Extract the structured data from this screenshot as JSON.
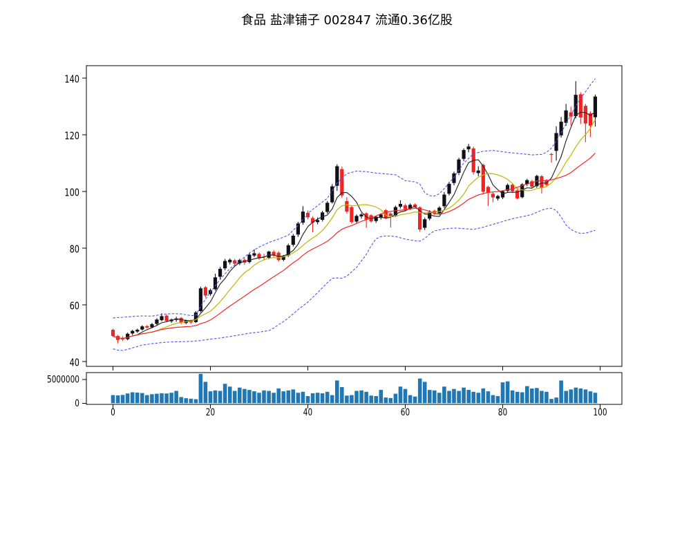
{
  "chart_data": {
    "type": "candlestick",
    "title": "食品 盐津铺子 002847 流通0.36亿股",
    "panels": [
      "price",
      "volume"
    ],
    "x_ticks": [
      0,
      20,
      40,
      60,
      80,
      100
    ],
    "price_ticks": [
      40,
      60,
      80,
      100,
      120,
      140
    ],
    "volume_ticks": [
      0,
      5000000
    ],
    "candles_ohlc": [
      [
        51.2,
        51.6,
        48.6,
        49.0
      ],
      [
        49.0,
        49.4,
        46.4,
        47.6
      ],
      [
        48.4,
        48.9,
        47.2,
        47.8
      ],
      [
        47.9,
        50.2,
        47.5,
        49.8
      ],
      [
        49.9,
        51.2,
        49.3,
        50.8
      ],
      [
        50.6,
        51.6,
        50.1,
        51.2
      ],
      [
        51.3,
        52.8,
        50.9,
        52.4
      ],
      [
        52.5,
        52.9,
        51.6,
        52.0
      ],
      [
        52.1,
        53.6,
        51.7,
        53.2
      ],
      [
        53.3,
        55.3,
        52.9,
        54.8
      ],
      [
        54.6,
        57.0,
        54.2,
        56.0
      ],
      [
        56.2,
        56.6,
        53.9,
        54.3
      ],
      [
        54.2,
        55.2,
        53.6,
        54.8
      ],
      [
        54.7,
        55.8,
        54.0,
        55.2
      ],
      [
        55.4,
        55.7,
        53.2,
        53.7
      ],
      [
        53.6,
        54.8,
        53.2,
        54.4
      ],
      [
        54.5,
        54.8,
        53.3,
        53.8
      ],
      [
        53.9,
        57.8,
        53.6,
        57.3
      ],
      [
        57.8,
        66.4,
        57.4,
        65.8
      ],
      [
        66.2,
        66.6,
        62.6,
        63.3
      ],
      [
        63.8,
        65.7,
        63.2,
        65.2
      ],
      [
        65.5,
        71.0,
        65.0,
        69.7
      ],
      [
        69.9,
        73.4,
        68.9,
        72.7
      ],
      [
        72.9,
        76.2,
        72.2,
        75.5
      ],
      [
        75.0,
        76.4,
        74.2,
        75.9
      ],
      [
        75.7,
        76.2,
        73.8,
        74.5
      ],
      [
        74.6,
        76.3,
        74.0,
        75.8
      ],
      [
        75.9,
        76.5,
        74.2,
        74.9
      ],
      [
        75.1,
        78.2,
        74.6,
        77.7
      ],
      [
        77.4,
        79.6,
        76.8,
        78.2
      ],
      [
        78.0,
        78.5,
        75.9,
        76.4
      ],
      [
        77.1,
        78.0,
        75.8,
        76.8
      ],
      [
        76.6,
        79.1,
        76.1,
        78.8
      ],
      [
        78.7,
        79.3,
        76.9,
        77.5
      ],
      [
        78.4,
        78.9,
        75.2,
        75.8
      ],
      [
        75.9,
        77.6,
        75.4,
        77.2
      ],
      [
        77.4,
        81.6,
        76.9,
        81.0
      ],
      [
        81.2,
        85.0,
        80.6,
        84.4
      ],
      [
        84.8,
        89.3,
        84.0,
        88.7
      ],
      [
        89.0,
        94.8,
        88.3,
        92.9
      ],
      [
        92.5,
        93.3,
        90.2,
        90.9
      ],
      [
        90.6,
        91.2,
        85.6,
        89.0
      ],
      [
        89.2,
        90.8,
        88.4,
        89.9
      ],
      [
        90.0,
        93.2,
        89.4,
        92.6
      ],
      [
        92.8,
        96.6,
        92.2,
        96.0
      ],
      [
        96.2,
        102.6,
        95.7,
        101.8
      ],
      [
        102.0,
        109.6,
        100.2,
        108.9
      ],
      [
        107.9,
        108.8,
        97.8,
        98.6
      ],
      [
        96.6,
        98.0,
        92.2,
        92.9
      ],
      [
        94.5,
        94.9,
        88.6,
        89.2
      ],
      [
        89.4,
        91.9,
        88.8,
        91.4
      ],
      [
        91.2,
        92.4,
        90.4,
        91.9
      ],
      [
        92.3,
        92.7,
        87.2,
        90.1
      ],
      [
        91.6,
        92.0,
        89.0,
        89.4
      ],
      [
        89.6,
        91.4,
        88.9,
        91.1
      ],
      [
        90.7,
        92.3,
        90.1,
        91.9
      ],
      [
        93.4,
        93.8,
        90.3,
        90.6
      ],
      [
        92.2,
        92.6,
        87.3,
        91.4
      ],
      [
        91.6,
        95.0,
        91.0,
        94.5
      ],
      [
        94.6,
        96.9,
        94.0,
        95.6
      ],
      [
        95.1,
        95.6,
        93.2,
        93.7
      ],
      [
        94.0,
        95.8,
        93.5,
        95.3
      ],
      [
        95.4,
        95.8,
        94.2,
        94.6
      ],
      [
        94.4,
        94.8,
        85.8,
        86.6
      ],
      [
        87.2,
        90.8,
        86.4,
        90.2
      ],
      [
        90.4,
        93.4,
        89.8,
        92.8
      ],
      [
        93.2,
        93.6,
        91.6,
        92.1
      ],
      [
        92.3,
        94.8,
        91.8,
        94.3
      ],
      [
        94.8,
        99.8,
        94.2,
        98.9
      ],
      [
        99.2,
        103.4,
        98.6,
        102.7
      ],
      [
        103.0,
        107.0,
        102.2,
        106.4
      ],
      [
        106.6,
        111.9,
        105.8,
        111.3
      ],
      [
        111.5,
        115.2,
        110.7,
        114.6
      ],
      [
        114.9,
        116.8,
        113.8,
        115.9
      ],
      [
        115.2,
        115.8,
        106.0,
        106.8
      ],
      [
        106.5,
        108.9,
        105.4,
        107.4
      ],
      [
        109.4,
        109.8,
        99.0,
        99.9
      ],
      [
        101.6,
        102.0,
        94.9,
        99.6
      ],
      [
        99.2,
        99.8,
        96.2,
        97.9
      ],
      [
        97.5,
        98.8,
        96.8,
        98.4
      ],
      [
        97.9,
        100.4,
        97.3,
        100.1
      ],
      [
        100.2,
        102.8,
        99.6,
        102.3
      ],
      [
        102.4,
        102.9,
        99.5,
        100.1
      ],
      [
        100.4,
        100.9,
        97.2,
        97.6
      ],
      [
        98.0,
        102.9,
        97.6,
        102.5
      ],
      [
        102.6,
        104.5,
        101.9,
        104.0
      ],
      [
        103.6,
        104.1,
        101.2,
        101.7
      ],
      [
        101.9,
        105.9,
        101.3,
        105.5
      ],
      [
        105.4,
        105.8,
        99.3,
        101.2
      ],
      [
        104.0,
        104.4,
        101.6,
        102.3
      ],
      [
        113.2,
        113.6,
        110.2,
        112.9
      ],
      [
        114.3,
        123.0,
        110.9,
        120.6
      ],
      [
        119.8,
        126.3,
        119.0,
        124.6
      ],
      [
        124.2,
        130.9,
        123.2,
        128.6
      ],
      [
        127.9,
        129.9,
        123.3,
        126.4
      ],
      [
        126.6,
        138.9,
        125.8,
        134.1
      ],
      [
        134.3,
        135.0,
        123.8,
        126.1
      ],
      [
        130.2,
        130.9,
        117.4,
        124.0
      ],
      [
        127.6,
        128.3,
        119.2,
        123.2
      ],
      [
        126.2,
        134.2,
        122.9,
        133.5
      ]
    ],
    "volumes": [
      1700000,
      1650000,
      1750000,
      2050000,
      2300000,
      2250000,
      2150000,
      1700000,
      1900000,
      2000000,
      2100000,
      2050000,
      2200000,
      2600000,
      1300000,
      1050000,
      950000,
      850000,
      6200000,
      4500000,
      2500000,
      2700000,
      2600000,
      4100000,
      3500000,
      2600000,
      3300000,
      3000000,
      2800000,
      2500000,
      2200000,
      2700000,
      2600000,
      2200000,
      3100000,
      2500000,
      2700000,
      2900000,
      2200000,
      2400000,
      1500000,
      2100000,
      2200000,
      2100000,
      2400000,
      1700000,
      4800000,
      3400000,
      1600000,
      1700000,
      2600000,
      2700000,
      2400000,
      1600000,
      1500000,
      2800000,
      1200000,
      1100000,
      2000000,
      3500000,
      3000000,
      1700000,
      1400000,
      5200000,
      4500000,
      2800000,
      2700000,
      2200000,
      3500000,
      2600000,
      3000000,
      2600000,
      3300000,
      2800000,
      2400000,
      2200000,
      3100000,
      2500000,
      1700000,
      1500000,
      4400000,
      4600000,
      2700000,
      2400000,
      2300000,
      3600000,
      3100000,
      3200000,
      2600000,
      2400000,
      900000,
      1200000,
      4800000,
      2600000,
      2900000,
      3300000,
      3100000,
      2900000,
      2500000,
      2200000
    ],
    "overlays": {
      "ma_fast_window": 5,
      "ma_mid_window": 10,
      "ma_slow_window": 20,
      "bollinger_upper_anchors": [
        [
          0,
          55.4
        ],
        [
          2,
          55.6
        ],
        [
          4,
          55.9
        ],
        [
          6,
          56.1
        ],
        [
          8,
          56.0
        ],
        [
          10,
          56.6
        ],
        [
          12,
          56.9
        ],
        [
          14,
          56.8
        ],
        [
          16,
          56.2
        ],
        [
          17,
          56.3
        ],
        [
          18,
          59.5
        ],
        [
          20,
          64.5
        ],
        [
          22,
          69.0
        ],
        [
          24,
          72.8
        ],
        [
          26,
          75.4
        ],
        [
          28,
          78.3
        ],
        [
          30,
          80.4
        ],
        [
          32,
          82.0
        ],
        [
          34,
          83.2
        ],
        [
          36,
          84.6
        ],
        [
          38,
          88.0
        ],
        [
          40,
          92.3
        ],
        [
          42,
          95.0
        ],
        [
          44,
          97.6
        ],
        [
          46,
          103.0
        ],
        [
          48,
          106.3
        ],
        [
          50,
          107.2
        ],
        [
          52,
          107.0
        ],
        [
          54,
          106.5
        ],
        [
          56,
          106.2
        ],
        [
          58,
          105.9
        ],
        [
          60,
          103.8
        ],
        [
          62,
          103.4
        ],
        [
          63,
          102.6
        ],
        [
          64,
          99.6
        ],
        [
          65,
          98.5
        ],
        [
          66,
          98.4
        ],
        [
          67,
          99.2
        ],
        [
          68,
          101.0
        ],
        [
          70,
          105.0
        ],
        [
          72,
          110.0
        ],
        [
          74,
          113.3
        ],
        [
          76,
          114.2
        ],
        [
          78,
          114.5
        ],
        [
          80,
          114.0
        ],
        [
          82,
          113.6
        ],
        [
          84,
          113.3
        ],
        [
          86,
          112.9
        ],
        [
          88,
          113.1
        ],
        [
          89,
          113.8
        ],
        [
          90,
          115.3
        ],
        [
          91,
          117.8
        ],
        [
          92,
          120.8
        ],
        [
          93,
          123.8
        ],
        [
          94,
          127.0
        ],
        [
          95,
          130.2
        ],
        [
          96,
          132.8
        ],
        [
          97,
          135.2
        ],
        [
          98,
          137.6
        ],
        [
          99,
          139.8
        ]
      ],
      "bollinger_lower_anchors": [
        [
          0,
          44.5
        ],
        [
          1,
          44.0
        ],
        [
          2,
          43.9
        ],
        [
          3,
          44.3
        ],
        [
          4,
          44.8
        ],
        [
          5,
          45.3
        ],
        [
          6,
          45.8
        ],
        [
          8,
          46.3
        ],
        [
          10,
          46.7
        ],
        [
          12,
          46.9
        ],
        [
          14,
          47.0
        ],
        [
          16,
          47.1
        ],
        [
          18,
          47.4
        ],
        [
          20,
          47.9
        ],
        [
          22,
          48.3
        ],
        [
          24,
          48.8
        ],
        [
          26,
          49.4
        ],
        [
          28,
          50.0
        ],
        [
          30,
          50.4
        ],
        [
          32,
          50.9
        ],
        [
          33,
          51.8
        ],
        [
          34,
          53.0
        ],
        [
          35,
          54.1
        ],
        [
          36,
          55.4
        ],
        [
          37,
          56.8
        ],
        [
          38,
          58.3
        ],
        [
          40,
          61.0
        ],
        [
          42,
          64.3
        ],
        [
          44,
          67.8
        ],
        [
          45,
          69.4
        ],
        [
          46,
          69.5
        ],
        [
          47,
          69.4
        ],
        [
          48,
          70.1
        ],
        [
          50,
          73.2
        ],
        [
          52,
          77.8
        ],
        [
          53,
          80.8
        ],
        [
          54,
          83.3
        ],
        [
          55,
          84.1
        ],
        [
          56,
          84.3
        ],
        [
          57,
          84.3
        ],
        [
          58,
          84.1
        ],
        [
          60,
          83.2
        ],
        [
          62,
          82.6
        ],
        [
          63,
          82.5
        ],
        [
          64,
          83.4
        ],
        [
          65,
          85.0
        ],
        [
          66,
          86.1
        ],
        [
          68,
          86.8
        ],
        [
          70,
          87.1
        ],
        [
          72,
          86.9
        ],
        [
          74,
          86.6
        ],
        [
          76,
          87.4
        ],
        [
          78,
          88.4
        ],
        [
          80,
          89.4
        ],
        [
          82,
          90.4
        ],
        [
          84,
          91.1
        ],
        [
          86,
          91.9
        ],
        [
          88,
          93.4
        ],
        [
          89,
          93.9
        ],
        [
          90,
          94.1
        ],
        [
          91,
          93.3
        ],
        [
          92,
          91.0
        ],
        [
          93,
          88.2
        ],
        [
          94,
          86.6
        ],
        [
          95,
          85.7
        ],
        [
          96,
          85.2
        ],
        [
          97,
          85.3
        ],
        [
          98,
          85.8
        ],
        [
          99,
          86.3
        ]
      ]
    },
    "colors": {
      "up": "#101018",
      "down": "#f32222",
      "ma_fast": "#2b2b2b",
      "ma_mid": "#c3b400",
      "ma_slow": "#f42525",
      "band": "#5353ee",
      "volume": "#1f77b4",
      "axis": "#000000"
    }
  }
}
